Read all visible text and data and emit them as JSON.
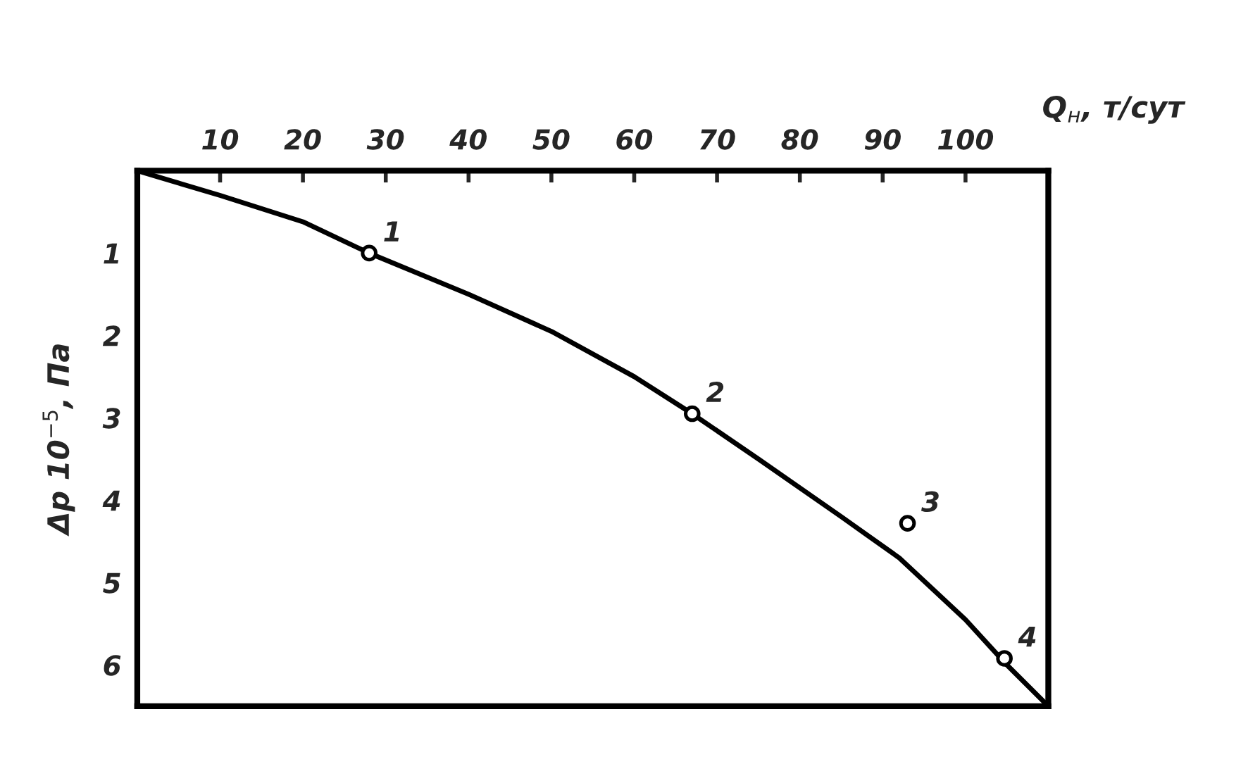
{
  "chart_data": {
    "type": "line",
    "xlabel": "Q$_{н}$, т/сут",
    "ylabel": "Δp 10$^{−5}$, Па",
    "xlim": [
      0,
      110
    ],
    "xticks": [
      10,
      20,
      30,
      40,
      50,
      60,
      70,
      80,
      90,
      100
    ],
    "ylim": [
      6.5,
      0
    ],
    "yticks": [
      1,
      2,
      3,
      4,
      5,
      6
    ],
    "grid": false,
    "series": [
      {
        "color": "#000000",
        "marker": "none",
        "x": [
          0,
          10,
          20,
          28,
          40,
          50,
          60,
          67,
          75,
          85,
          92,
          100,
          105,
          110
        ],
        "values": [
          0,
          0.3,
          0.62,
          1.0,
          1.5,
          1.95,
          2.5,
          2.95,
          3.5,
          4.2,
          4.7,
          5.45,
          6.0,
          6.5
        ]
      },
      {
        "type": "scatter",
        "color": "#000000",
        "marker": "circle",
        "x": [
          28,
          67,
          93,
          104.7
        ],
        "values": [
          1.0,
          2.95,
          4.28,
          5.92
        ]
      }
    ],
    "annotations": [
      {
        "text": "1",
        "x": 28,
        "y": 1.0
      },
      {
        "text": "2",
        "x": 67,
        "y": 2.95
      },
      {
        "text": "3",
        "x": 93,
        "y": 4.28
      },
      {
        "text": "4",
        "x": 104.7,
        "y": 5.92
      }
    ]
  }
}
